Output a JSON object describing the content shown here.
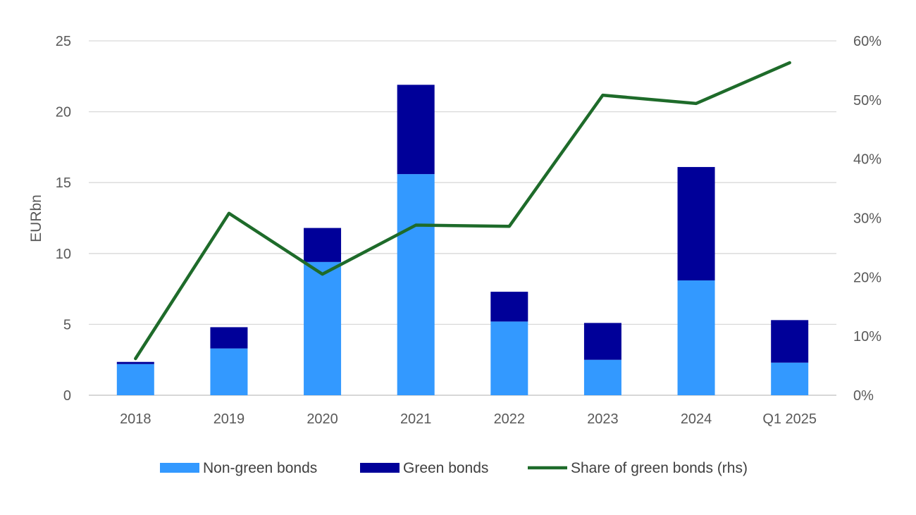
{
  "chart_data": {
    "type": "bar",
    "stacked": true,
    "categories": [
      "2018",
      "2019",
      "2020",
      "2021",
      "2022",
      "2023",
      "2024",
      "Q1 2025"
    ],
    "series": [
      {
        "name": "Non-green bonds",
        "type": "bar",
        "axis": "left",
        "color": "#3399FF",
        "values": [
          2.2,
          3.3,
          9.4,
          15.6,
          5.2,
          2.5,
          8.1,
          2.3
        ]
      },
      {
        "name": "Green bonds",
        "type": "bar",
        "axis": "left",
        "color": "#000099",
        "values": [
          0.15,
          1.5,
          2.4,
          6.3,
          2.1,
          2.6,
          8.0,
          3.0
        ]
      },
      {
        "name": "Share of green bonds (rhs)",
        "type": "line",
        "axis": "right",
        "color": "#1E6B2A",
        "values": [
          6.2,
          30.8,
          20.5,
          28.8,
          28.6,
          50.8,
          49.4,
          56.3
        ]
      }
    ],
    "ylabel": "EURbn",
    "ylim": [
      0,
      25
    ],
    "yticks": [
      "0",
      "5",
      "10",
      "15",
      "20",
      "25"
    ],
    "y2lim": [
      0,
      60
    ],
    "y2ticks": [
      "0%",
      "10%",
      "20%",
      "30%",
      "40%",
      "50%",
      "60%"
    ],
    "grid": true,
    "legend_position": "bottom"
  }
}
